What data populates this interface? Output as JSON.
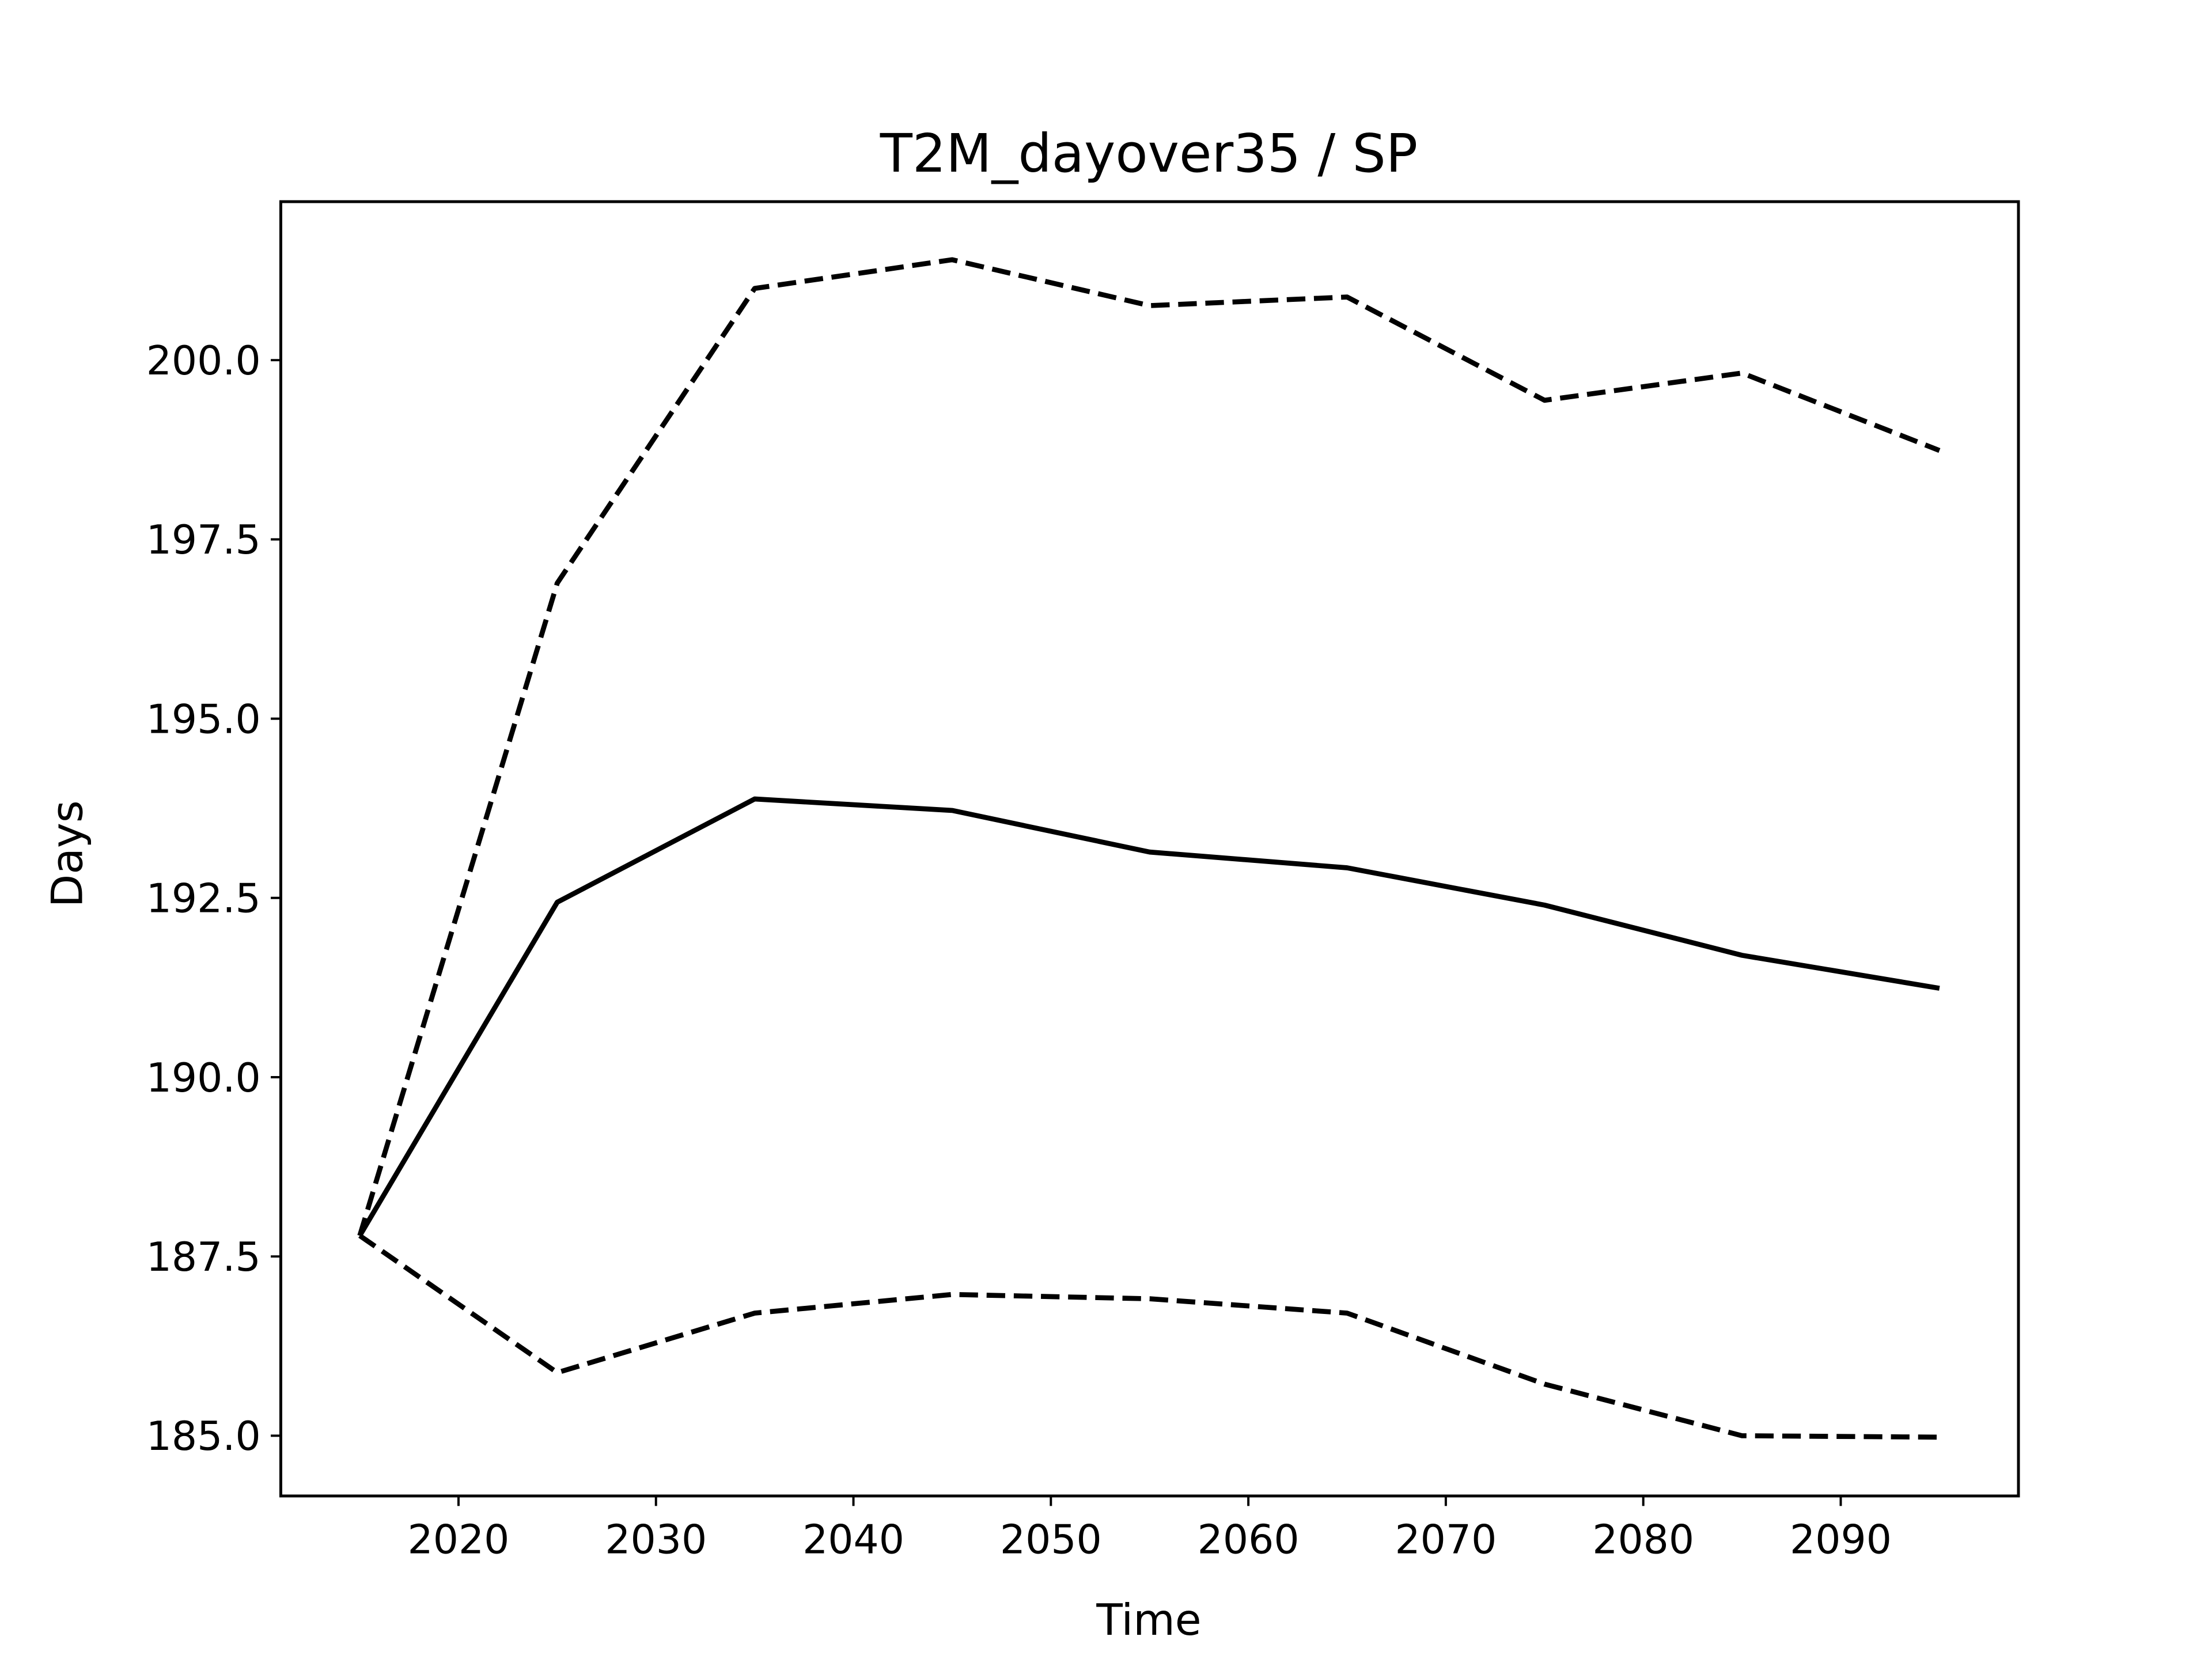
{
  "chart_data": {
    "type": "line",
    "title": "T2M_dayover35 / SP",
    "xlabel": "Time",
    "ylabel": "Days",
    "x": [
      2015,
      2025,
      2035,
      2045,
      2055,
      2065,
      2075,
      2085,
      2095
    ],
    "series": [
      {
        "color": "#000000",
        "linestyle": "solid",
        "values": [
          187.79,
          192.44,
          193.88,
          193.72,
          193.14,
          192.92,
          192.4,
          191.7,
          191.24
        ]
      },
      {
        "color": "#000000",
        "linestyle": "dashed",
        "values": [
          187.79,
          196.89,
          201.0,
          201.4,
          200.76,
          200.88,
          199.44,
          199.82,
          198.74
        ]
      },
      {
        "color": "#000000",
        "linestyle": "dashed",
        "values": [
          187.79,
          185.88,
          186.71,
          186.97,
          186.91,
          186.71,
          185.72,
          185.0,
          184.98
        ]
      }
    ],
    "xlim": [
      2011,
      2099
    ],
    "xticks": [
      2020,
      2030,
      2040,
      2050,
      2060,
      2070,
      2080,
      2090
    ],
    "ylim": [
      184.16,
      202.21
    ],
    "yticks": [
      {
        "value": 185,
        "label": "185.0"
      },
      {
        "value": 187.5,
        "label": "187.5"
      },
      {
        "value": 190,
        "label": "190.0"
      },
      {
        "value": 192.5,
        "label": "192.5"
      },
      {
        "value": 195,
        "label": "195.0"
      },
      {
        "value": 197.5,
        "label": "197.5"
      },
      {
        "value": 200,
        "label": "200.0"
      }
    ],
    "grid": false
  }
}
